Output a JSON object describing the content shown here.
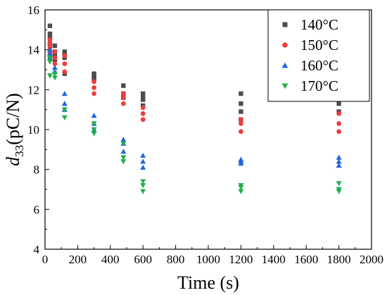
{
  "chart_data": {
    "type": "scatter",
    "xlabel": "Time (s)",
    "ylabel": {
      "base": "d",
      "sub": "33",
      "rest": "(pC/N)"
    },
    "xlim": [
      0,
      2000
    ],
    "ylim": [
      4,
      16
    ],
    "x_ticks": [
      0,
      200,
      400,
      600,
      800,
      1000,
      1200,
      1400,
      1600,
      1800,
      2000
    ],
    "y_ticks": [
      4,
      6,
      8,
      10,
      12,
      14,
      16
    ],
    "grid": false,
    "legend_position": "top-right",
    "series": [
      {
        "name": "140°C",
        "marker": "square",
        "color": "#4d4d4d",
        "points": [
          [
            30,
            15.2
          ],
          [
            30,
            14.8
          ],
          [
            30,
            14.6
          ],
          [
            30,
            14.3
          ],
          [
            30,
            13.7
          ],
          [
            60,
            14.2
          ],
          [
            60,
            13.9
          ],
          [
            60,
            13.7
          ],
          [
            60,
            13.5
          ],
          [
            120,
            13.9
          ],
          [
            120,
            13.8
          ],
          [
            120,
            13.6
          ],
          [
            120,
            12.8
          ],
          [
            300,
            12.8
          ],
          [
            300,
            12.7
          ],
          [
            300,
            12.6
          ],
          [
            300,
            12.5
          ],
          [
            480,
            12.2
          ],
          [
            480,
            11.8
          ],
          [
            480,
            11.6
          ],
          [
            600,
            11.8
          ],
          [
            600,
            11.7
          ],
          [
            600,
            11.5
          ],
          [
            600,
            11.2
          ],
          [
            1200,
            11.8
          ],
          [
            1200,
            11.3
          ],
          [
            1200,
            10.9
          ],
          [
            1200,
            10.5
          ],
          [
            1800,
            11.3
          ],
          [
            1800,
            10.9
          ]
        ]
      },
      {
        "name": "150°C",
        "marker": "circle",
        "color": "#f03c3c",
        "points": [
          [
            30,
            14.5
          ],
          [
            30,
            14.3
          ],
          [
            30,
            14.1
          ],
          [
            30,
            13.9
          ],
          [
            30,
            13.5
          ],
          [
            60,
            13.9
          ],
          [
            60,
            13.6
          ],
          [
            60,
            13.3
          ],
          [
            120,
            13.7
          ],
          [
            120,
            13.3
          ],
          [
            120,
            12.9
          ],
          [
            300,
            12.4
          ],
          [
            300,
            12.1
          ],
          [
            300,
            11.8
          ],
          [
            480,
            11.8
          ],
          [
            480,
            11.6
          ],
          [
            480,
            11.3
          ],
          [
            600,
            11.1
          ],
          [
            600,
            10.8
          ],
          [
            600,
            10.5
          ],
          [
            1200,
            10.5
          ],
          [
            1200,
            10.3
          ],
          [
            1200,
            9.9
          ],
          [
            1800,
            10.8
          ],
          [
            1800,
            10.3
          ],
          [
            1800,
            9.9
          ]
        ]
      },
      {
        "name": "160°C",
        "marker": "triangle-up",
        "color": "#2266dd",
        "points": [
          [
            30,
            14.0
          ],
          [
            30,
            13.8
          ],
          [
            30,
            13.6
          ],
          [
            60,
            13.1
          ],
          [
            60,
            12.9
          ],
          [
            120,
            11.8
          ],
          [
            120,
            11.3
          ],
          [
            120,
            11.0
          ],
          [
            300,
            10.7
          ],
          [
            300,
            10.3
          ],
          [
            300,
            10.0
          ],
          [
            480,
            9.5
          ],
          [
            480,
            9.3
          ],
          [
            480,
            8.9
          ],
          [
            600,
            8.7
          ],
          [
            600,
            8.4
          ],
          [
            600,
            8.1
          ],
          [
            1200,
            8.5
          ],
          [
            1200,
            8.4
          ],
          [
            1200,
            8.3
          ],
          [
            1800,
            8.6
          ],
          [
            1800,
            8.4
          ],
          [
            1800,
            8.2
          ]
        ]
      },
      {
        "name": "170°C",
        "marker": "triangle-down",
        "color": "#22b04b",
        "points": [
          [
            30,
            13.6
          ],
          [
            30,
            13.4
          ],
          [
            30,
            12.7
          ],
          [
            60,
            12.8
          ],
          [
            60,
            12.6
          ],
          [
            120,
            11.0
          ],
          [
            120,
            10.6
          ],
          [
            300,
            10.3
          ],
          [
            300,
            10.0
          ],
          [
            300,
            9.8
          ],
          [
            480,
            9.3
          ],
          [
            480,
            8.6
          ],
          [
            480,
            8.4
          ],
          [
            600,
            7.4
          ],
          [
            600,
            7.2
          ],
          [
            600,
            6.9
          ],
          [
            1200,
            7.2
          ],
          [
            1200,
            7.1
          ],
          [
            1200,
            6.9
          ],
          [
            1800,
            7.3
          ],
          [
            1800,
            7.0
          ],
          [
            1800,
            6.9
          ]
        ]
      }
    ]
  }
}
